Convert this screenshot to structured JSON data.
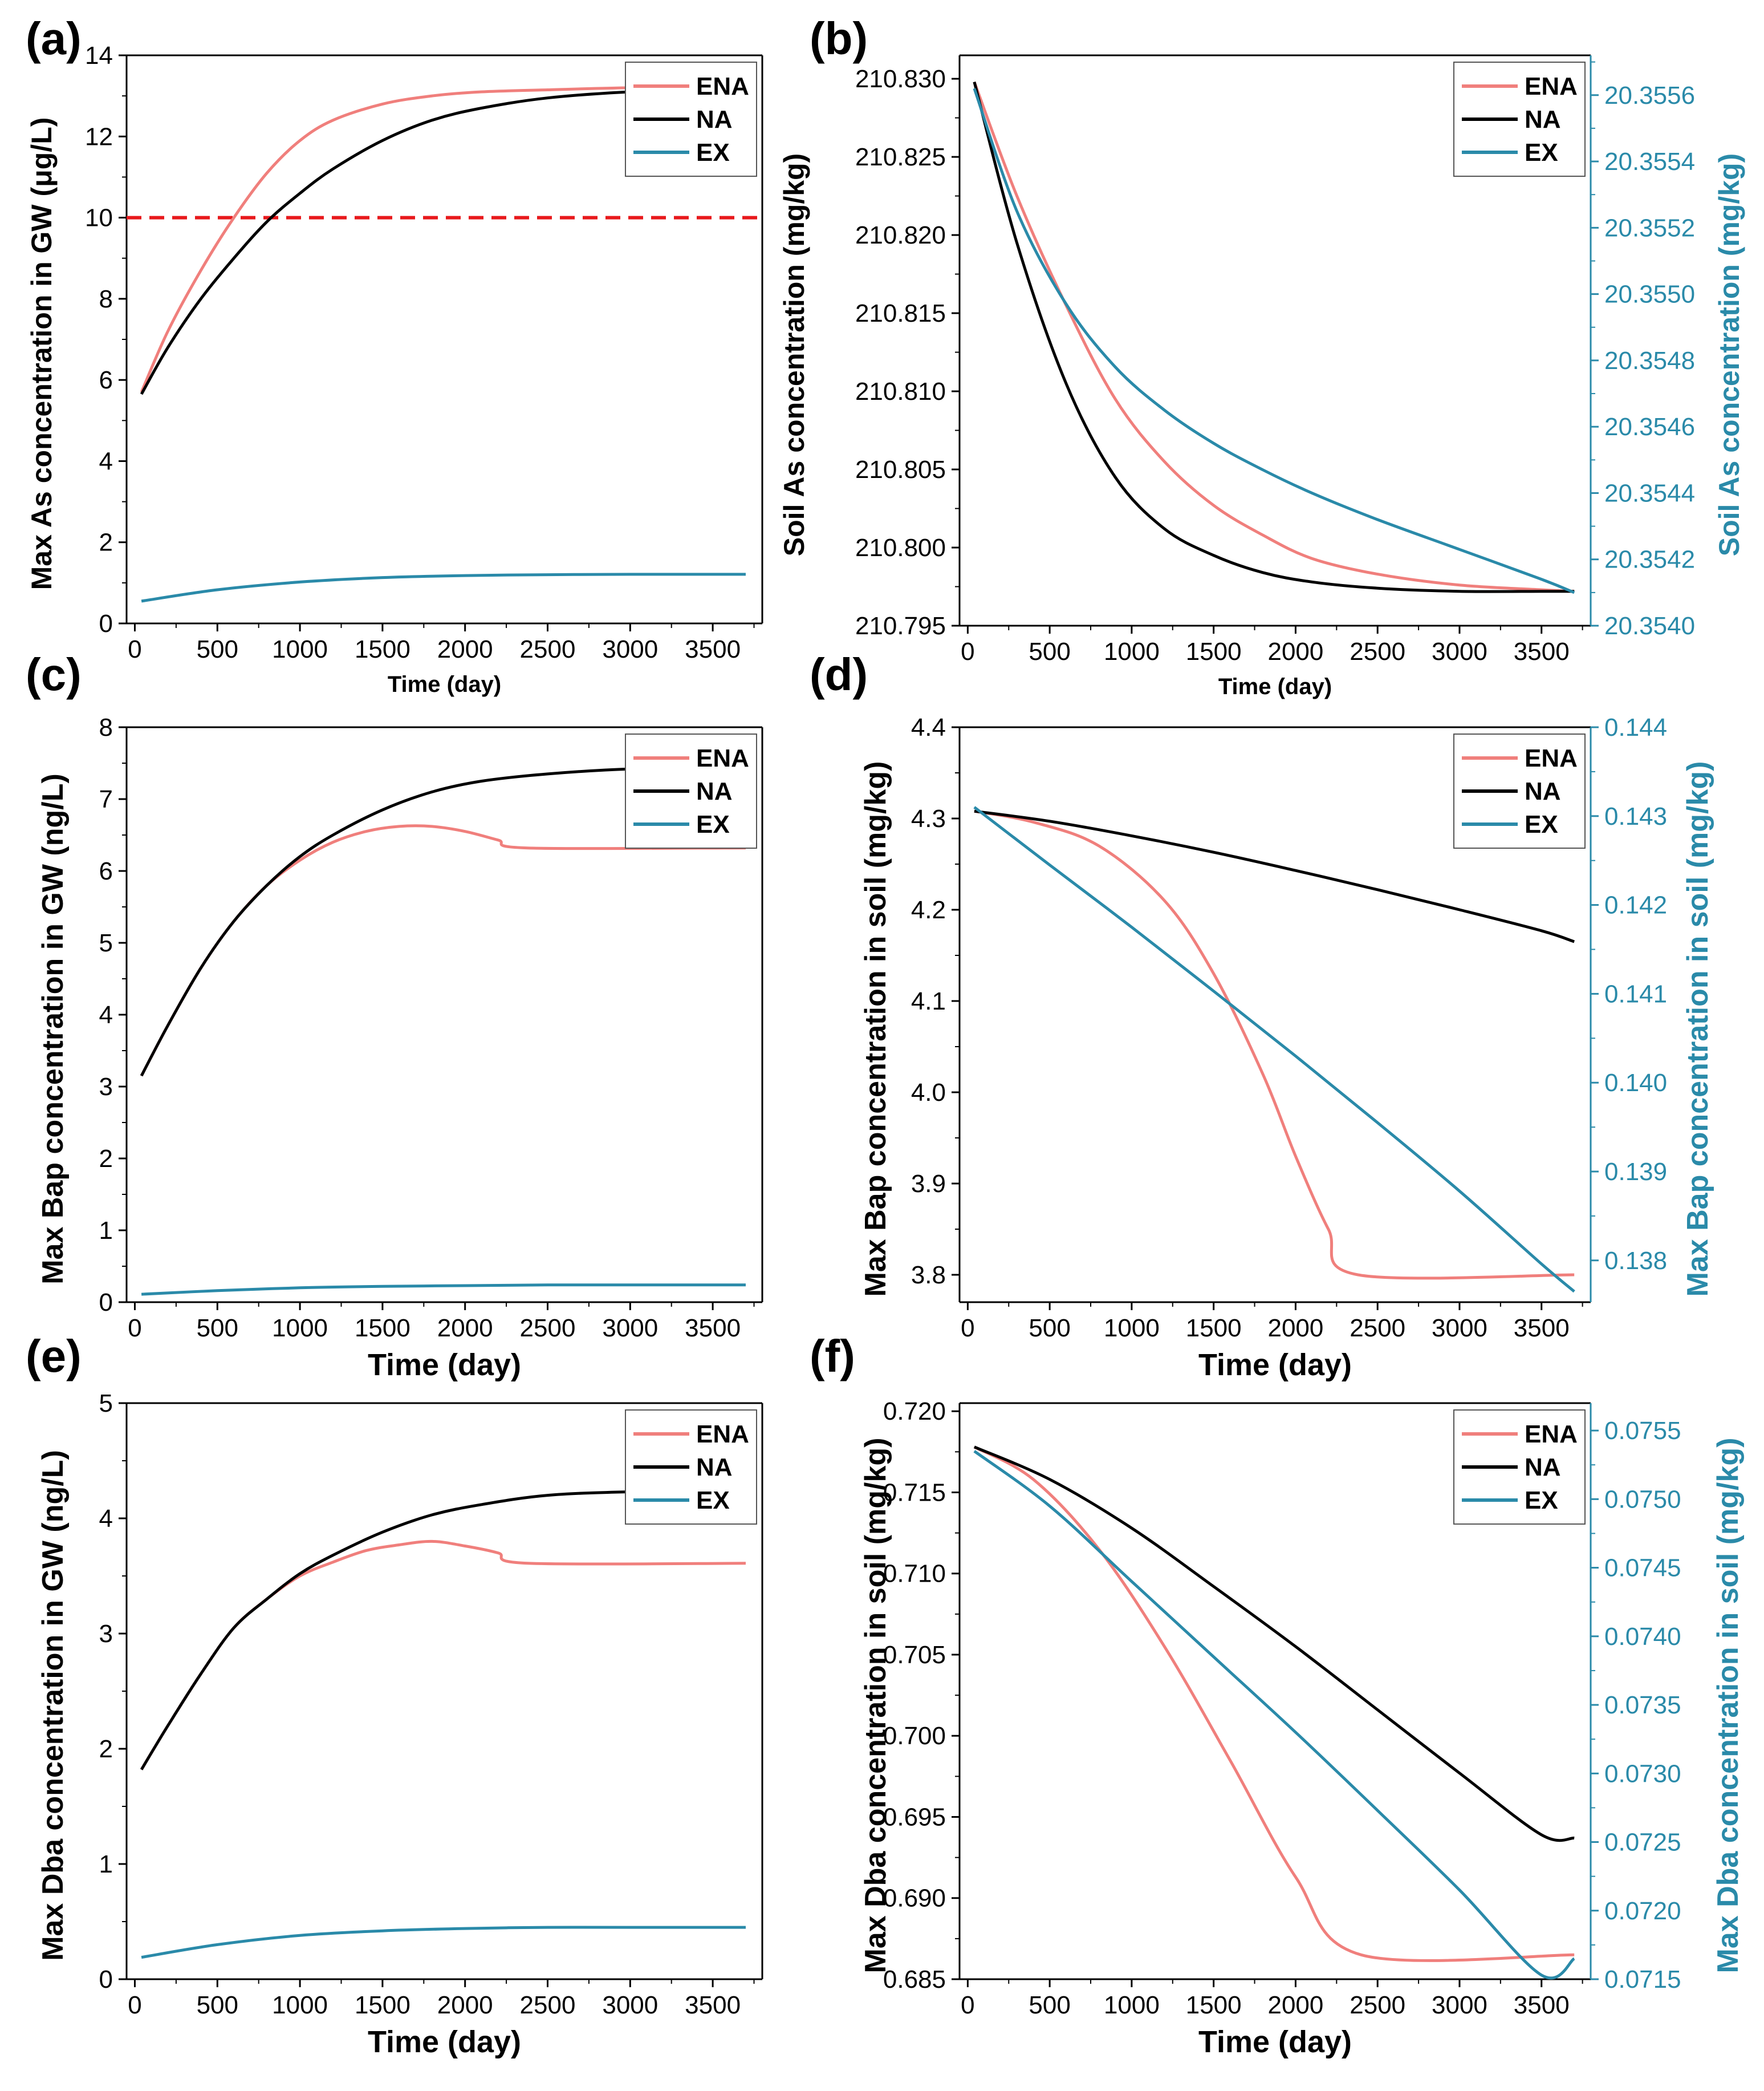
{
  "colors": {
    "ENA": "#f07f7c",
    "NA": "#000000",
    "EX": "#2a8aa9",
    "threshold": "#e8191c",
    "right_axis": "#2a8aa9"
  },
  "chart_data": [
    {
      "id": "a",
      "panel_label": "(a)",
      "type": "line",
      "xlabel": "Time (day)",
      "ylabel": "Max As concentration in GW (μg/L)",
      "xlim": [
        -50,
        3800
      ],
      "ylim": [
        0,
        14
      ],
      "xticks": [
        0,
        500,
        1000,
        1500,
        2000,
        2500,
        3000,
        3500
      ],
      "yticks": [
        0,
        2,
        4,
        6,
        8,
        10,
        12,
        14
      ],
      "ytick_labels": [
        "0",
        "2",
        "4",
        "6",
        "8",
        "10",
        "12",
        "14"
      ],
      "hline": {
        "y": 10,
        "style": "dashed"
      },
      "legend": [
        "ENA",
        "NA",
        "EX"
      ],
      "series": [
        {
          "name": "ENA",
          "axis": "left",
          "x": [
            40,
            200,
            400,
            600,
            800,
            1000,
            1200,
            1500,
            1800,
            2100,
            2500,
            3000,
            3500,
            3700
          ],
          "y": [
            5.7,
            7.2,
            8.7,
            10.0,
            11.1,
            11.9,
            12.4,
            12.8,
            13.0,
            13.1,
            13.15,
            13.2,
            13.2,
            13.2
          ]
        },
        {
          "name": "NA",
          "axis": "left",
          "x": [
            40,
            200,
            400,
            600,
            800,
            1000,
            1200,
            1500,
            1800,
            2100,
            2500,
            3000,
            3500,
            3700
          ],
          "y": [
            5.65,
            6.8,
            8.0,
            9.0,
            9.9,
            10.6,
            11.2,
            11.9,
            12.4,
            12.7,
            12.95,
            13.1,
            13.15,
            13.15
          ]
        },
        {
          "name": "EX",
          "axis": "left",
          "x": [
            40,
            500,
            1000,
            1500,
            2000,
            2500,
            3000,
            3700
          ],
          "y": [
            0.55,
            0.83,
            1.02,
            1.13,
            1.18,
            1.2,
            1.21,
            1.21
          ]
        }
      ]
    },
    {
      "id": "b",
      "panel_label": "(b)",
      "type": "line",
      "xlabel": "Time (day)",
      "ylabel": "Soil As concentration (mg/kg)",
      "y2label": "Soil As concentration (mg/kg)",
      "xlim": [
        -50,
        3800
      ],
      "ylim": [
        210.795,
        210.8315
      ],
      "y2lim": [
        20.354,
        20.35572
      ],
      "xticks": [
        0,
        500,
        1000,
        1500,
        2000,
        2500,
        3000,
        3500
      ],
      "yticks": [
        210.795,
        210.8,
        210.805,
        210.81,
        210.815,
        210.82,
        210.825,
        210.83
      ],
      "ytick_labels": [
        "210.795",
        "210.800",
        "210.805",
        "210.810",
        "210.815",
        "210.820",
        "210.825",
        "210.830"
      ],
      "y2ticks": [
        20.354,
        20.3542,
        20.3544,
        20.3546,
        20.3548,
        20.355,
        20.3552,
        20.3554,
        20.3556
      ],
      "y2tick_labels": [
        "20.3540",
        "20.3542",
        "20.3544",
        "20.3546",
        "20.3548",
        "20.3550",
        "20.3552",
        "20.3554",
        "20.3556"
      ],
      "legend": [
        "ENA",
        "NA",
        "EX"
      ],
      "series": [
        {
          "name": "ENA",
          "axis": "left",
          "x": [
            40,
            300,
            600,
            900,
            1200,
            1500,
            1800,
            2100,
            2500,
            3000,
            3500,
            3700
          ],
          "y": [
            210.8298,
            210.8225,
            210.8155,
            210.8095,
            210.8055,
            210.8027,
            210.8008,
            210.7993,
            210.7983,
            210.7976,
            210.7973,
            210.7972
          ]
        },
        {
          "name": "NA",
          "axis": "left",
          "x": [
            40,
            300,
            600,
            900,
            1200,
            1500,
            1800,
            2100,
            2500,
            3000,
            3500,
            3700
          ],
          "y": [
            210.8298,
            210.8195,
            210.8105,
            210.8045,
            210.8012,
            210.7995,
            210.7984,
            210.7978,
            210.7974,
            210.7972,
            210.7972,
            210.7972
          ]
        },
        {
          "name": "EX",
          "axis": "right",
          "x": [
            40,
            300,
            600,
            900,
            1200,
            1500,
            1800,
            2100,
            2500,
            3000,
            3500,
            3700
          ],
          "y": [
            20.35562,
            20.35525,
            20.35497,
            20.35478,
            20.35465,
            20.35455,
            20.35447,
            20.3544,
            20.35432,
            20.35423,
            20.35414,
            20.3541
          ]
        }
      ]
    },
    {
      "id": "c",
      "panel_label": "(c)",
      "type": "line",
      "xlabel": "Time (day)",
      "ylabel": "Max Bap concentration in GW (ng/L)",
      "xlim": [
        -50,
        3800
      ],
      "ylim": [
        0,
        8
      ],
      "xticks": [
        0,
        500,
        1000,
        1500,
        2000,
        2500,
        3000,
        3500
      ],
      "yticks": [
        0,
        1,
        2,
        3,
        4,
        5,
        6,
        7,
        8
      ],
      "ytick_labels": [
        "0",
        "1",
        "2",
        "3",
        "4",
        "5",
        "6",
        "7",
        "8"
      ],
      "legend": [
        "ENA",
        "NA",
        "EX"
      ],
      "series": [
        {
          "name": "ENA",
          "axis": "left",
          "x": [
            40,
            200,
            400,
            600,
            800,
            1000,
            1200,
            1400,
            1600,
            1800,
            2000,
            2200,
            2380,
            3700
          ],
          "y": [
            3.15,
            3.85,
            4.65,
            5.3,
            5.8,
            6.15,
            6.4,
            6.55,
            6.62,
            6.62,
            6.55,
            6.43,
            6.32,
            6.32
          ]
        },
        {
          "name": "NA",
          "axis": "left",
          "x": [
            40,
            200,
            400,
            600,
            800,
            1000,
            1200,
            1500,
            1800,
            2100,
            2500,
            3000,
            3500,
            3700
          ],
          "y": [
            3.15,
            3.85,
            4.65,
            5.3,
            5.8,
            6.2,
            6.5,
            6.85,
            7.1,
            7.25,
            7.35,
            7.42,
            7.43,
            7.43
          ]
        },
        {
          "name": "EX",
          "axis": "left",
          "x": [
            40,
            500,
            1000,
            1500,
            2000,
            2500,
            3000,
            3700
          ],
          "y": [
            0.11,
            0.16,
            0.2,
            0.22,
            0.23,
            0.24,
            0.24,
            0.24
          ]
        }
      ]
    },
    {
      "id": "d",
      "panel_label": "(d)",
      "type": "line",
      "xlabel": "Time (day)",
      "ylabel": "Max Bap concentration in soil (mg/kg)",
      "y2label": "Max Bap concentration in soil (mg/kg)",
      "xlim": [
        -50,
        3800
      ],
      "ylim": [
        3.77,
        4.4
      ],
      "y2lim": [
        0.13753,
        0.144
      ],
      "xticks": [
        0,
        500,
        1000,
        1500,
        2000,
        2500,
        3000,
        3500
      ],
      "yticks": [
        3.8,
        3.9,
        4.0,
        4.1,
        4.2,
        4.3,
        4.4
      ],
      "ytick_labels": [
        "3.8",
        "3.9",
        "4.0",
        "4.1",
        "4.2",
        "4.3",
        "4.4"
      ],
      "y2ticks": [
        0.138,
        0.139,
        0.14,
        0.141,
        0.142,
        0.143,
        0.144
      ],
      "y2tick_labels": [
        "0.138",
        "0.139",
        "0.140",
        "0.141",
        "0.142",
        "0.143",
        "0.144"
      ],
      "legend": [
        "ENA",
        "NA",
        "EX"
      ],
      "series": [
        {
          "name": "ENA",
          "axis": "left",
          "x": [
            40,
            400,
            800,
            1200,
            1500,
            1800,
            2000,
            2200,
            2380,
            3700
          ],
          "y": [
            4.308,
            4.296,
            4.27,
            4.21,
            4.13,
            4.02,
            3.93,
            3.85,
            3.8,
            3.8
          ]
        },
        {
          "name": "NA",
          "axis": "left",
          "x": [
            40,
            500,
            1000,
            1500,
            2000,
            2500,
            3000,
            3500,
            3700
          ],
          "y": [
            4.308,
            4.297,
            4.281,
            4.263,
            4.243,
            4.222,
            4.2,
            4.177,
            4.165
          ]
        },
        {
          "name": "EX",
          "axis": "right",
          "x": [
            40,
            500,
            1000,
            1500,
            2000,
            2500,
            3000,
            3500,
            3700
          ],
          "y": [
            0.1431,
            0.14245,
            0.14175,
            0.14103,
            0.1403,
            0.13955,
            0.13878,
            0.13796,
            0.13765
          ]
        }
      ]
    },
    {
      "id": "e",
      "panel_label": "(e)",
      "type": "line",
      "xlabel": "Time (day)",
      "ylabel": "Max Dba concentration in GW (ng/L)",
      "xlim": [
        -50,
        3800
      ],
      "ylim": [
        0,
        5
      ],
      "xticks": [
        0,
        500,
        1000,
        1500,
        2000,
        2500,
        3000,
        3500
      ],
      "yticks": [
        0,
        1,
        2,
        3,
        4,
        5
      ],
      "ytick_labels": [
        "0",
        "1",
        "2",
        "3",
        "4",
        "5"
      ],
      "legend": [
        "ENA",
        "NA",
        "EX"
      ],
      "series": [
        {
          "name": "ENA",
          "axis": "left",
          "x": [
            40,
            200,
            400,
            600,
            800,
            1000,
            1200,
            1400,
            1600,
            1800,
            2000,
            2200,
            2380,
            3700
          ],
          "y": [
            1.82,
            2.2,
            2.65,
            3.05,
            3.3,
            3.5,
            3.62,
            3.72,
            3.77,
            3.8,
            3.76,
            3.7,
            3.61,
            3.61
          ]
        },
        {
          "name": "NA",
          "axis": "left",
          "x": [
            40,
            200,
            400,
            600,
            800,
            1000,
            1200,
            1500,
            1800,
            2100,
            2500,
            3000,
            3500,
            3700
          ],
          "y": [
            1.82,
            2.2,
            2.65,
            3.05,
            3.3,
            3.52,
            3.68,
            3.88,
            4.03,
            4.12,
            4.2,
            4.23,
            4.23,
            4.22
          ]
        },
        {
          "name": "EX",
          "axis": "left",
          "x": [
            40,
            500,
            1000,
            1500,
            2000,
            2500,
            3000,
            3700
          ],
          "y": [
            0.19,
            0.3,
            0.38,
            0.42,
            0.44,
            0.45,
            0.45,
            0.45
          ]
        }
      ]
    },
    {
      "id": "f",
      "panel_label": "(f)",
      "type": "line",
      "xlabel": "Time (day)",
      "ylabel": "Max Dba concentration in soil (mg/kg)",
      "y2label": "Max Dba concentration in soil (mg/kg)",
      "xlim": [
        -50,
        3800
      ],
      "ylim": [
        0.685,
        0.7205
      ],
      "y2lim": [
        0.0715,
        0.0757
      ],
      "xticks": [
        0,
        500,
        1000,
        1500,
        2000,
        2500,
        3000,
        3500
      ],
      "yticks": [
        0.685,
        0.69,
        0.695,
        0.7,
        0.705,
        0.71,
        0.715,
        0.72
      ],
      "ytick_labels": [
        "0.685",
        "0.690",
        "0.695",
        "0.700",
        "0.705",
        "0.710",
        "0.715",
        "0.720"
      ],
      "y2ticks": [
        0.0715,
        0.072,
        0.0725,
        0.073,
        0.0735,
        0.074,
        0.0745,
        0.075,
        0.0755
      ],
      "y2tick_labels": [
        "0.0715",
        "0.0720",
        "0.0725",
        "0.0730",
        "0.0735",
        "0.0740",
        "0.0745",
        "0.0750",
        "0.0755"
      ],
      "legend": [
        "ENA",
        "NA",
        "EX"
      ],
      "series": [
        {
          "name": "ENA",
          "axis": "left",
          "x": [
            40,
            400,
            800,
            1200,
            1600,
            2000,
            2400,
            3700
          ],
          "y": [
            0.7178,
            0.7158,
            0.7115,
            0.7055,
            0.6985,
            0.6913,
            0.6865,
            0.6865
          ]
        },
        {
          "name": "NA",
          "axis": "left",
          "x": [
            40,
            500,
            1000,
            1500,
            2000,
            2500,
            3000,
            3500,
            3700
          ],
          "y": [
            0.7178,
            0.7158,
            0.7128,
            0.7092,
            0.7055,
            0.7016,
            0.6977,
            0.6939,
            0.6937
          ]
        },
        {
          "name": "EX",
          "axis": "right",
          "x": [
            40,
            500,
            1000,
            1500,
            2000,
            2500,
            3000,
            3500,
            3700
          ],
          "y": [
            0.07535,
            0.07495,
            0.0744,
            0.07385,
            0.0733,
            0.07273,
            0.07215,
            0.07153,
            0.07165
          ]
        }
      ]
    }
  ]
}
